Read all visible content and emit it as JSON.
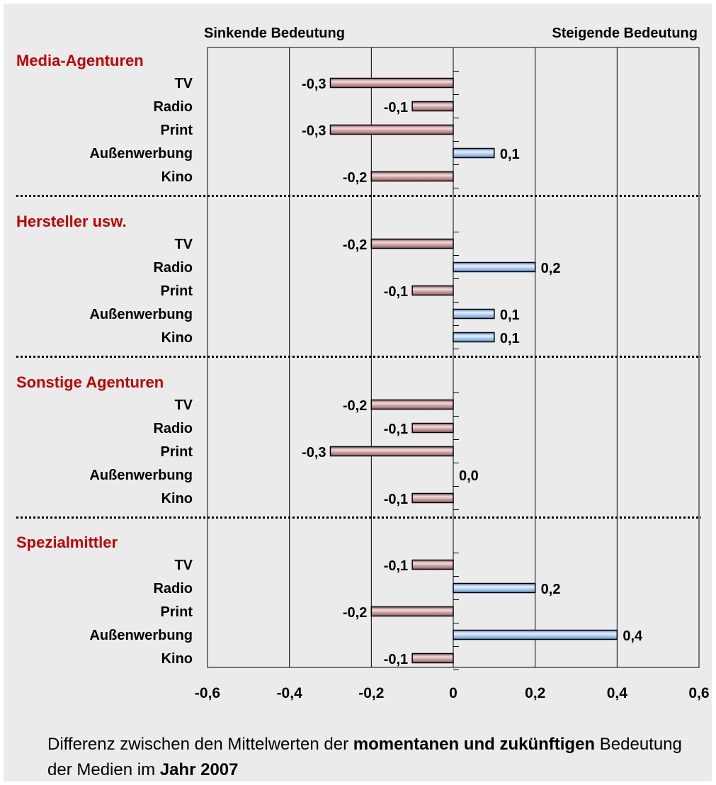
{
  "chart_data": {
    "type": "bar",
    "orientation": "horizontal",
    "header_left": "Sinkende Bedeutung",
    "header_right": "Steigende Bedeutung",
    "xlim": [
      -0.6,
      0.6
    ],
    "x_ticks": [
      "-0,6",
      "-0,4",
      "-0,2",
      "0",
      "0,2",
      "0,4",
      "0,6"
    ],
    "grid": "vertical",
    "colors": {
      "negative": "#c79a9a",
      "positive": "#a9cdf0",
      "group_label": "#c00000"
    },
    "groups": [
      {
        "name": "Media-Agenturen",
        "items": [
          {
            "label": "TV",
            "value": -0.3,
            "value_label": "-0,3"
          },
          {
            "label": "Radio",
            "value": -0.1,
            "value_label": "-0,1"
          },
          {
            "label": "Print",
            "value": -0.3,
            "value_label": "-0,3"
          },
          {
            "label": "Außenwerbung",
            "value": 0.1,
            "value_label": "0,1"
          },
          {
            "label": "Kino",
            "value": -0.2,
            "value_label": "-0,2"
          }
        ]
      },
      {
        "name": "Hersteller usw.",
        "items": [
          {
            "label": "TV",
            "value": -0.2,
            "value_label": "-0,2"
          },
          {
            "label": "Radio",
            "value": 0.2,
            "value_label": "0,2"
          },
          {
            "label": "Print",
            "value": -0.1,
            "value_label": "-0,1"
          },
          {
            "label": "Außenwerbung",
            "value": 0.1,
            "value_label": "0,1"
          },
          {
            "label": "Kino",
            "value": 0.1,
            "value_label": "0,1"
          }
        ]
      },
      {
        "name": "Sonstige Agenturen",
        "items": [
          {
            "label": "TV",
            "value": -0.2,
            "value_label": "-0,2"
          },
          {
            "label": "Radio",
            "value": -0.1,
            "value_label": "-0,1"
          },
          {
            "label": "Print",
            "value": -0.3,
            "value_label": "-0,3"
          },
          {
            "label": "Außenwerbung",
            "value": 0.0,
            "value_label": "0,0"
          },
          {
            "label": "Kino",
            "value": -0.1,
            "value_label": "-0,1"
          }
        ]
      },
      {
        "name": "Spezialmittler",
        "items": [
          {
            "label": "TV",
            "value": -0.1,
            "value_label": "-0,1"
          },
          {
            "label": "Radio",
            "value": 0.2,
            "value_label": "0,2"
          },
          {
            "label": "Print",
            "value": -0.2,
            "value_label": "-0,2"
          },
          {
            "label": "Außenwerbung",
            "value": 0.4,
            "value_label": "0,4"
          },
          {
            "label": "Kino",
            "value": -0.1,
            "value_label": "-0,1"
          }
        ]
      }
    ]
  },
  "caption": {
    "part1": "Differenz zwischen den Mittelwerten der ",
    "bold1": "momentanen und zukünftigen",
    "part2": " Bedeutung der Medien im ",
    "bold2": "Jahr 2007"
  }
}
